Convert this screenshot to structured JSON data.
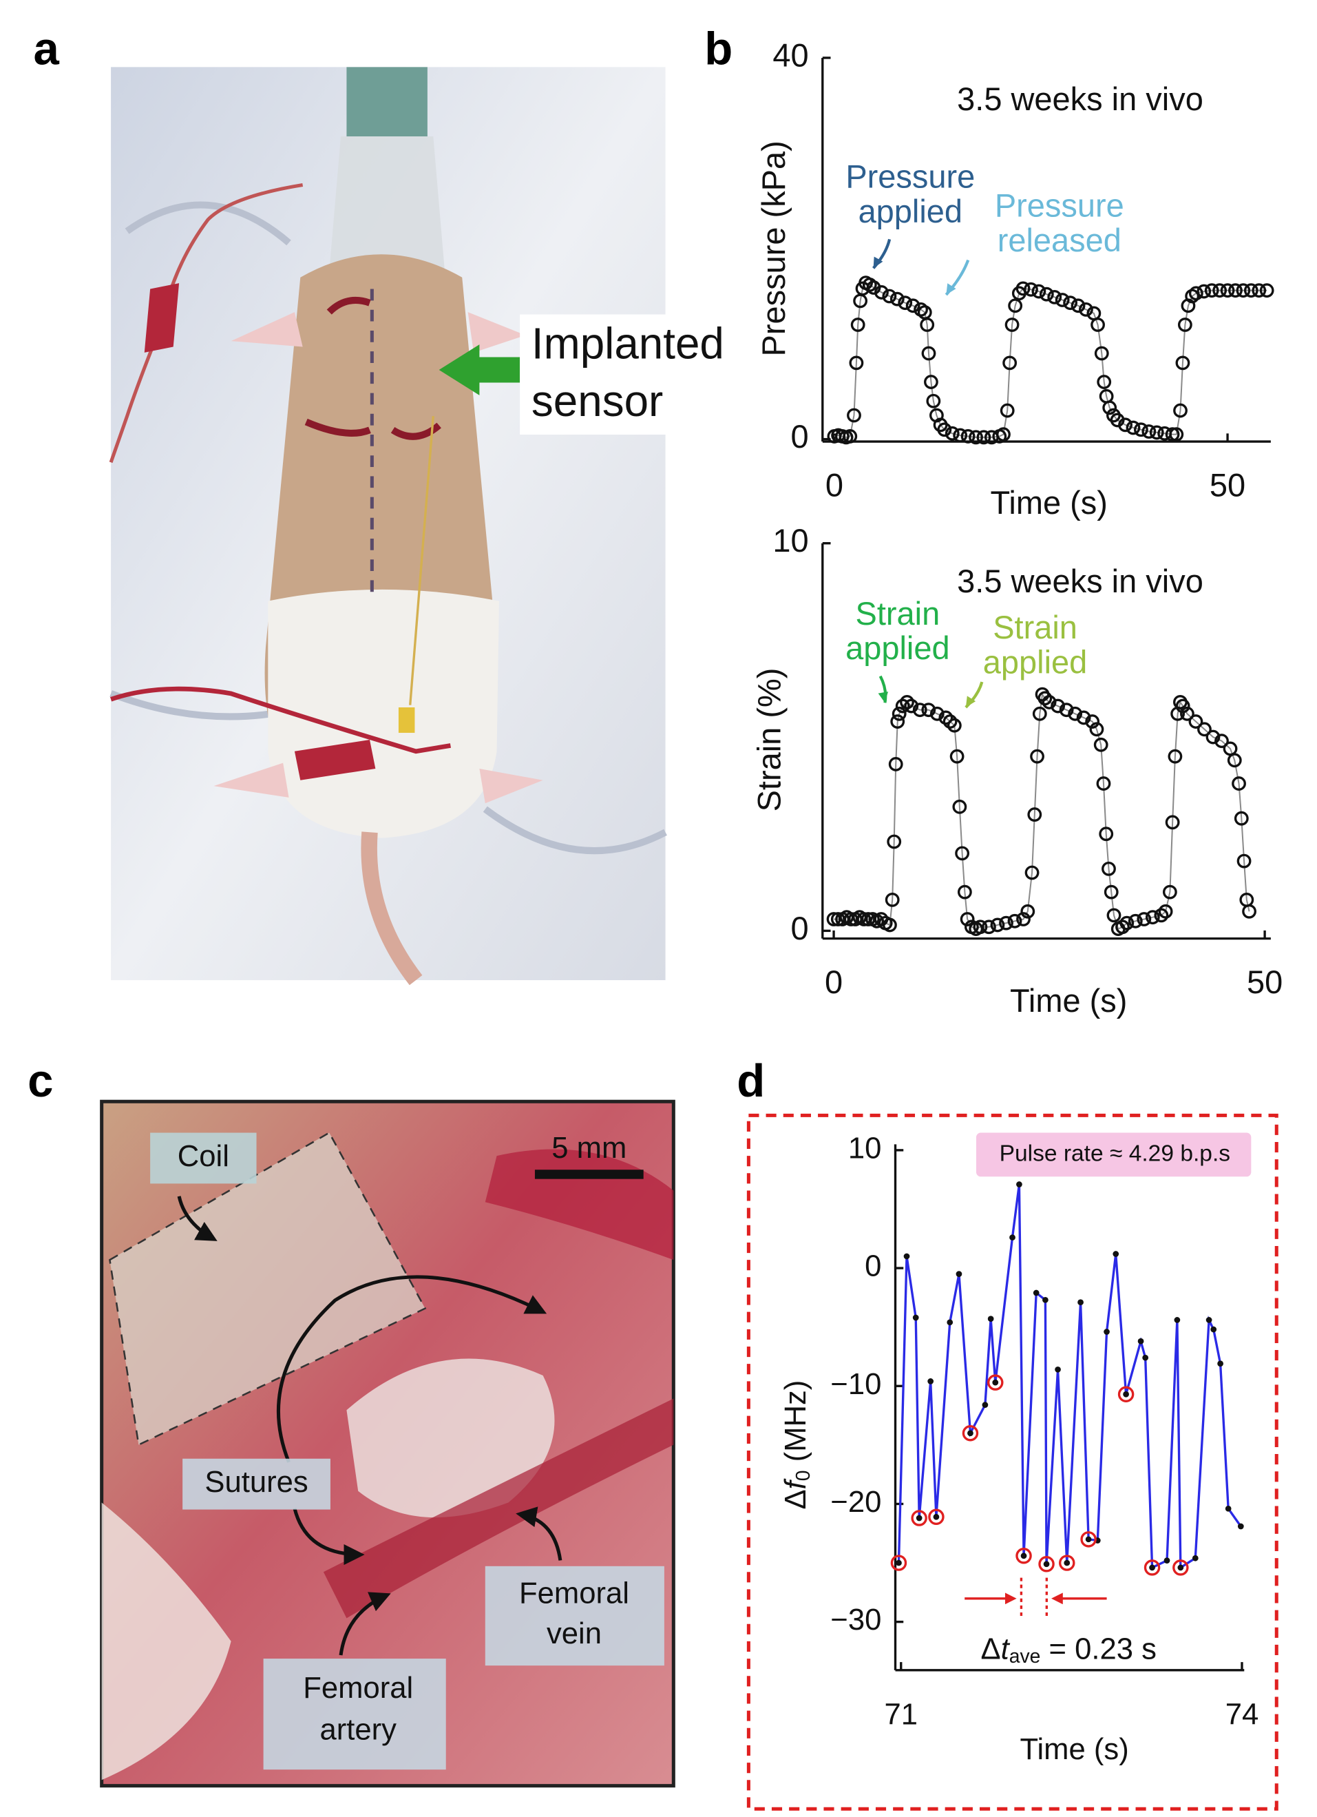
{
  "panel_labels": [
    "a",
    "b",
    "c",
    "d"
  ],
  "photo_a": {
    "label": [
      "Implanted",
      "sensor"
    ]
  },
  "photo_c": {
    "coil": "Coil",
    "scale_bar": "5 mm",
    "sutures": "Sutures",
    "femoral_vein": [
      "Femoral",
      "vein"
    ],
    "femoral_artery": [
      "Femoral",
      "artery"
    ]
  },
  "chart_data": [
    {
      "type": "line",
      "x_label": "Time (s)",
      "y_label": "Pressure (kPa)",
      "xlim": [
        -1.5,
        55.5
      ],
      "xticks": [
        0,
        50
      ],
      "ylim": [
        -0.25,
        40
      ],
      "yticks": [
        0,
        40
      ],
      "annotations": [
        {
          "text": "3.5 weeks in vivo",
          "color": "#111111"
        },
        {
          "lines": [
            "Pressure",
            "applied"
          ],
          "color": "#2d5f8f"
        },
        {
          "lines": [
            "Pressure",
            "released"
          ],
          "color": "#6ab9d9"
        }
      ],
      "series": [
        {
          "color": "#8a8a8a",
          "marker": "open-circle",
          "marker_color": "#111111",
          "line": true,
          "x": [
            0,
            0.5,
            1,
            1.5,
            2,
            2.5,
            2.8,
            3,
            3.3,
            3.6,
            4,
            4.5,
            5,
            6,
            7,
            8,
            9,
            10,
            11,
            11.5,
            11.8,
            12,
            12.3,
            12.6,
            13,
            13.5,
            14,
            15,
            16,
            17,
            18,
            19,
            20,
            21,
            21.5,
            22,
            22.3,
            22.6,
            23,
            23.5,
            24,
            25,
            26,
            27,
            28,
            29,
            30,
            31,
            32,
            33,
            33.5,
            34,
            34.3,
            34.6,
            35,
            35.5,
            36,
            37,
            38,
            39,
            40,
            41,
            42,
            43,
            43.5,
            44,
            44.3,
            44.6,
            45,
            45.5,
            46,
            47,
            48,
            49,
            50,
            51,
            52,
            53,
            54,
            55
          ],
          "values": [
            0.3,
            0.4,
            0.3,
            0.2,
            0.3,
            2.5,
            8,
            12,
            14.5,
            15.8,
            16.4,
            16.2,
            15.9,
            15.4,
            15,
            14.7,
            14.3,
            14,
            13.6,
            13.3,
            12,
            9,
            6,
            4,
            2.5,
            1.5,
            1,
            0.6,
            0.4,
            0.3,
            0.2,
            0.2,
            0.2,
            0.3,
            0.5,
            3,
            8,
            12,
            14,
            15.3,
            15.8,
            15.7,
            15.5,
            15.2,
            14.9,
            14.6,
            14.3,
            14,
            13.6,
            13.2,
            12,
            9,
            6,
            4.5,
            3.3,
            2.5,
            2,
            1.5,
            1.2,
            1,
            0.8,
            0.7,
            0.6,
            0.5,
            0.5,
            3,
            8,
            12,
            14,
            15,
            15.3,
            15.5,
            15.6,
            15.6,
            15.6,
            15.6,
            15.6,
            15.6,
            15.6,
            15.6
          ]
        }
      ]
    },
    {
      "type": "line",
      "x_label": "Time (s)",
      "y_label": "Strain (%)",
      "xlim": [
        -1.3,
        50.7
      ],
      "xticks": [
        0,
        50
      ],
      "ylim": [
        -0.2,
        10
      ],
      "yticks": [
        0,
        10
      ],
      "annotations": [
        {
          "text": "3.5 weeks in vivo",
          "color": "#111111"
        },
        {
          "lines": [
            "Strain",
            "applied"
          ],
          "color": "#22b04a"
        },
        {
          "lines": [
            "Strain",
            "applied"
          ],
          "color": "#9ac040"
        }
      ],
      "series": [
        {
          "color": "#8a8a8a",
          "marker": "open-circle",
          "marker_color": "#111111",
          "line": true,
          "x": [
            0,
            0.5,
            1,
            1.5,
            2,
            2.5,
            3,
            3.5,
            4,
            4.5,
            5,
            5.5,
            6,
            6.5,
            6.8,
            7,
            7.2,
            7.4,
            7.6,
            8,
            8.5,
            9,
            10,
            11,
            12,
            13,
            13.5,
            14,
            14.3,
            14.6,
            14.9,
            15.2,
            15.5,
            16,
            16.5,
            17,
            18,
            19,
            20,
            21,
            22,
            22.5,
            23,
            23.3,
            23.6,
            23.9,
            24.2,
            24.5,
            25,
            26,
            27,
            28,
            29,
            30,
            30.5,
            31,
            31.3,
            31.6,
            31.9,
            32.2,
            32.5,
            33,
            33.5,
            34,
            35,
            36,
            37,
            38,
            38.5,
            39,
            39.3,
            39.6,
            39.9,
            40.2,
            40.5,
            41,
            42,
            43,
            44,
            45,
            46,
            46.5,
            47,
            47.3,
            47.6,
            47.9,
            48.2
          ],
          "values": [
            0.3,
            0.3,
            0.3,
            0.35,
            0.3,
            0.3,
            0.35,
            0.3,
            0.3,
            0.3,
            0.25,
            0.3,
            0.2,
            0.15,
            0.8,
            2.3,
            4.3,
            5.4,
            5.6,
            5.8,
            5.9,
            5.8,
            5.7,
            5.7,
            5.6,
            5.5,
            5.4,
            5.3,
            4.5,
            3.2,
            2,
            1,
            0.3,
            0.1,
            0.05,
            0.1,
            0.1,
            0.15,
            0.2,
            0.25,
            0.3,
            0.5,
            1.5,
            3,
            4.5,
            5.6,
            6.1,
            6.0,
            5.9,
            5.8,
            5.7,
            5.6,
            5.5,
            5.4,
            5.2,
            4.8,
            3.8,
            2.5,
            1.6,
            1,
            0.4,
            0.05,
            0.1,
            0.2,
            0.25,
            0.3,
            0.35,
            0.4,
            0.5,
            1,
            2.8,
            4.5,
            5.6,
            5.9,
            5.8,
            5.6,
            5.4,
            5.2,
            5.0,
            4.9,
            4.7,
            4.4,
            3.8,
            2.9,
            1.8,
            0.8,
            0.5
          ]
        }
      ]
    },
    {
      "type": "line",
      "x_label": "Time (s)",
      "y_label_parts": [
        "Δ",
        "f",
        "0",
        " (MHz)"
      ],
      "xlim": [
        70.95,
        74.02
      ],
      "xticks": [
        71,
        74
      ],
      "ylim": [
        -34.1,
        10.5
      ],
      "yticks": [
        10,
        0,
        {
          "value": -10,
          "label": "−10"
        },
        {
          "value": -20,
          "label": "−20"
        },
        {
          "value": -30,
          "label": "−30"
        }
      ],
      "annotations": [
        {
          "text": "Pulse rate ≈ 4.29 b.p.s",
          "color": "#111111",
          "background": "#f6c6e4"
        },
        {
          "parts": [
            "Δ",
            "t",
            "ave",
            " = 0.23 s"
          ],
          "color": "#111111"
        }
      ],
      "series": [
        {
          "color": "#2a2ae6",
          "marker": "dot",
          "marker_color": "#111111",
          "line": true,
          "x": [
            70.98,
            71.05,
            71.13,
            71.16,
            71.26,
            71.31,
            71.43,
            71.51,
            71.61,
            71.74,
            71.79,
            71.83,
            71.98,
            72.04,
            72.08,
            72.19,
            72.27,
            72.28,
            72.38,
            72.46,
            72.58,
            72.65,
            72.73,
            72.81,
            72.89,
            72.98,
            73.11,
            73.15,
            73.21,
            73.34,
            73.43,
            73.46,
            73.59,
            73.71,
            73.75,
            73.81,
            73.88,
            73.99
          ],
          "values": [
            -25.0,
            1.0,
            -4.2,
            -21.2,
            -9.6,
            -21.1,
            -4.6,
            -0.5,
            -14.0,
            -11.6,
            -4.3,
            -9.7,
            2.6,
            7.1,
            -24.4,
            -2.1,
            -2.7,
            -25.1,
            -8.6,
            -25.0,
            -2.9,
            -23.0,
            -23.1,
            -5.4,
            1.2,
            -10.7,
            -6.2,
            -7.6,
            -25.4,
            -24.8,
            -4.4,
            -25.4,
            -24.6,
            -4.4,
            -5.2,
            -8.1,
            -20.4,
            -21.9
          ]
        },
        {
          "color": "#e02020",
          "marker": "open-circle",
          "marker_color": "#e02020",
          "line": false,
          "x": [
            70.98,
            71.16,
            71.31,
            71.61,
            71.83,
            72.08,
            72.28,
            72.46,
            72.65,
            72.98,
            73.21,
            73.46
          ],
          "values": [
            -25.0,
            -21.2,
            -21.1,
            -14.0,
            -9.7,
            -24.4,
            -25.1,
            -25.0,
            -23.0,
            -10.7,
            -25.4,
            -25.4
          ]
        }
      ]
    }
  ]
}
